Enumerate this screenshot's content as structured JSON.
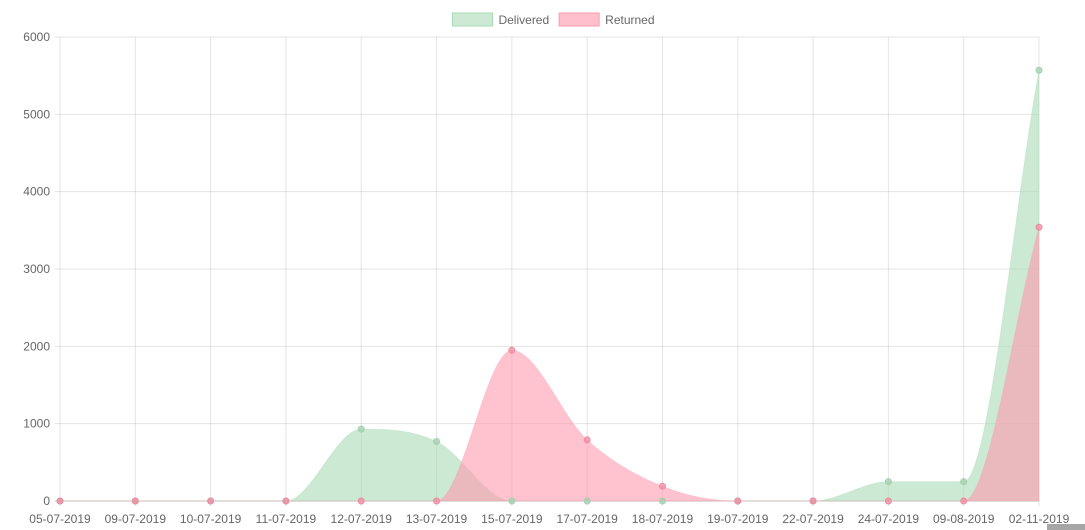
{
  "chart_data": {
    "type": "area",
    "title": "",
    "xlabel": "",
    "ylabel": "",
    "ylim": [
      0,
      6000
    ],
    "yticks": [
      0,
      1000,
      2000,
      3000,
      4000,
      5000,
      6000
    ],
    "grid": true,
    "legend_position": "top-center",
    "categories": [
      "05-07-2019",
      "09-07-2019",
      "10-07-2019",
      "11-07-2019",
      "12-07-2019",
      "13-07-2019",
      "15-07-2019",
      "17-07-2019",
      "18-07-2019",
      "19-07-2019",
      "22-07-2019",
      "24-07-2019",
      "09-08-2019",
      "02-11-2019"
    ],
    "series": [
      {
        "name": "Delivered",
        "fill": "#a8dbb5",
        "point": "#a3cfae",
        "swatch_fill": "#cde9d4",
        "swatch_border": "#a8dbb5",
        "values": [
          0,
          0,
          0,
          0,
          930,
          770,
          0,
          0,
          0,
          0,
          0,
          250,
          250,
          5570
        ]
      },
      {
        "name": "Returned",
        "fill": "#ff9aaf",
        "point": "#f08aa2",
        "swatch_fill": "#ffc0cc",
        "swatch_border": "#ff9aaf",
        "values": [
          0,
          0,
          0,
          0,
          0,
          0,
          1950,
          790,
          190,
          0,
          0,
          0,
          0,
          3540
        ]
      }
    ]
  }
}
